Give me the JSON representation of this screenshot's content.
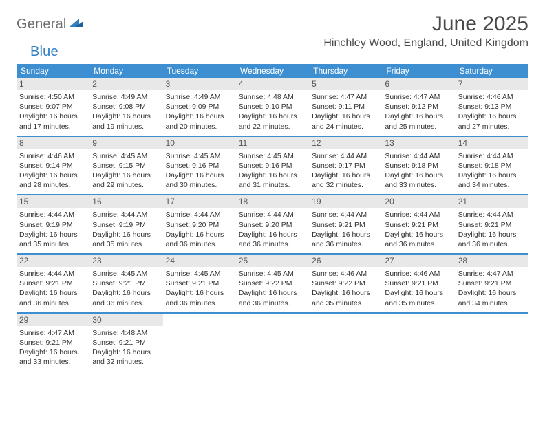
{
  "logo": {
    "word1": "General",
    "word2": "Blue"
  },
  "title": "June 2025",
  "location": "Hinchley Wood, England, United Kingdom",
  "colors": {
    "header_blue": "#3d8fd1",
    "daynum_bg": "#e8e8e8",
    "logo_gray": "#6d6d6d",
    "logo_blue": "#2f7fc2",
    "text": "#333333",
    "title_gray": "#4a4a4a"
  },
  "weekdays": [
    "Sunday",
    "Monday",
    "Tuesday",
    "Wednesday",
    "Thursday",
    "Friday",
    "Saturday"
  ],
  "weeks": [
    [
      {
        "n": "1",
        "sr": "4:50 AM",
        "ss": "9:07 PM",
        "dl": "16 hours and 17 minutes."
      },
      {
        "n": "2",
        "sr": "4:49 AM",
        "ss": "9:08 PM",
        "dl": "16 hours and 19 minutes."
      },
      {
        "n": "3",
        "sr": "4:49 AM",
        "ss": "9:09 PM",
        "dl": "16 hours and 20 minutes."
      },
      {
        "n": "4",
        "sr": "4:48 AM",
        "ss": "9:10 PM",
        "dl": "16 hours and 22 minutes."
      },
      {
        "n": "5",
        "sr": "4:47 AM",
        "ss": "9:11 PM",
        "dl": "16 hours and 24 minutes."
      },
      {
        "n": "6",
        "sr": "4:47 AM",
        "ss": "9:12 PM",
        "dl": "16 hours and 25 minutes."
      },
      {
        "n": "7",
        "sr": "4:46 AM",
        "ss": "9:13 PM",
        "dl": "16 hours and 27 minutes."
      }
    ],
    [
      {
        "n": "8",
        "sr": "4:46 AM",
        "ss": "9:14 PM",
        "dl": "16 hours and 28 minutes."
      },
      {
        "n": "9",
        "sr": "4:45 AM",
        "ss": "9:15 PM",
        "dl": "16 hours and 29 minutes."
      },
      {
        "n": "10",
        "sr": "4:45 AM",
        "ss": "9:16 PM",
        "dl": "16 hours and 30 minutes."
      },
      {
        "n": "11",
        "sr": "4:45 AM",
        "ss": "9:16 PM",
        "dl": "16 hours and 31 minutes."
      },
      {
        "n": "12",
        "sr": "4:44 AM",
        "ss": "9:17 PM",
        "dl": "16 hours and 32 minutes."
      },
      {
        "n": "13",
        "sr": "4:44 AM",
        "ss": "9:18 PM",
        "dl": "16 hours and 33 minutes."
      },
      {
        "n": "14",
        "sr": "4:44 AM",
        "ss": "9:18 PM",
        "dl": "16 hours and 34 minutes."
      }
    ],
    [
      {
        "n": "15",
        "sr": "4:44 AM",
        "ss": "9:19 PM",
        "dl": "16 hours and 35 minutes."
      },
      {
        "n": "16",
        "sr": "4:44 AM",
        "ss": "9:19 PM",
        "dl": "16 hours and 35 minutes."
      },
      {
        "n": "17",
        "sr": "4:44 AM",
        "ss": "9:20 PM",
        "dl": "16 hours and 36 minutes."
      },
      {
        "n": "18",
        "sr": "4:44 AM",
        "ss": "9:20 PM",
        "dl": "16 hours and 36 minutes."
      },
      {
        "n": "19",
        "sr": "4:44 AM",
        "ss": "9:21 PM",
        "dl": "16 hours and 36 minutes."
      },
      {
        "n": "20",
        "sr": "4:44 AM",
        "ss": "9:21 PM",
        "dl": "16 hours and 36 minutes."
      },
      {
        "n": "21",
        "sr": "4:44 AM",
        "ss": "9:21 PM",
        "dl": "16 hours and 36 minutes."
      }
    ],
    [
      {
        "n": "22",
        "sr": "4:44 AM",
        "ss": "9:21 PM",
        "dl": "16 hours and 36 minutes."
      },
      {
        "n": "23",
        "sr": "4:45 AM",
        "ss": "9:21 PM",
        "dl": "16 hours and 36 minutes."
      },
      {
        "n": "24",
        "sr": "4:45 AM",
        "ss": "9:21 PM",
        "dl": "16 hours and 36 minutes."
      },
      {
        "n": "25",
        "sr": "4:45 AM",
        "ss": "9:22 PM",
        "dl": "16 hours and 36 minutes."
      },
      {
        "n": "26",
        "sr": "4:46 AM",
        "ss": "9:22 PM",
        "dl": "16 hours and 35 minutes."
      },
      {
        "n": "27",
        "sr": "4:46 AM",
        "ss": "9:21 PM",
        "dl": "16 hours and 35 minutes."
      },
      {
        "n": "28",
        "sr": "4:47 AM",
        "ss": "9:21 PM",
        "dl": "16 hours and 34 minutes."
      }
    ],
    [
      {
        "n": "29",
        "sr": "4:47 AM",
        "ss": "9:21 PM",
        "dl": "16 hours and 33 minutes."
      },
      {
        "n": "30",
        "sr": "4:48 AM",
        "ss": "9:21 PM",
        "dl": "16 hours and 32 minutes."
      },
      null,
      null,
      null,
      null,
      null
    ]
  ],
  "labels": {
    "sunrise": "Sunrise: ",
    "sunset": "Sunset: ",
    "daylight": "Daylight: "
  }
}
